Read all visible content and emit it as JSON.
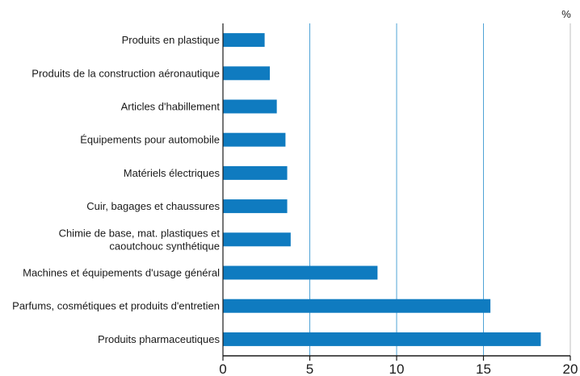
{
  "chart_data": {
    "type": "bar",
    "orientation": "horizontal",
    "unit_label": "%",
    "categories": [
      "Produits en plastique",
      "Produits de la construction aéronautique",
      "Articles d'habillement",
      "Équipements pour automobile",
      "Matériels électriques",
      "Cuir, bagages et chaussures",
      "Chimie de base, mat. plastiques et caoutchouc synthétique",
      "Machines et équipements d'usage général",
      "Parfums, cosmétiques et produits d'entretien",
      "Produits pharmaceutiques"
    ],
    "category_lines": [
      [
        "Produits en plastique"
      ],
      [
        "Produits de la construction aéronautique"
      ],
      [
        "Articles d'habillement"
      ],
      [
        "Équipements pour automobile"
      ],
      [
        "Matériels électriques"
      ],
      [
        "Cuir, bagages et chaussures"
      ],
      [
        "Chimie de base, mat. plastiques et",
        "caoutchouc synthétique"
      ],
      [
        "Machines et équipements d'usage général"
      ],
      [
        "Parfums, cosmétiques et produits d'entretien"
      ],
      [
        "Produits pharmaceutiques"
      ]
    ],
    "values": [
      2.4,
      2.7,
      3.1,
      3.6,
      3.7,
      3.7,
      3.9,
      8.9,
      15.4,
      18.3
    ],
    "xlim": [
      0,
      20
    ],
    "xticks": [
      "0",
      "5",
      "10",
      "15",
      "20"
    ],
    "grid": "vertical",
    "bar_color": "#0f7bc0",
    "grid_color": "#4fa3d6",
    "axis_color": "#1a1a1a"
  }
}
